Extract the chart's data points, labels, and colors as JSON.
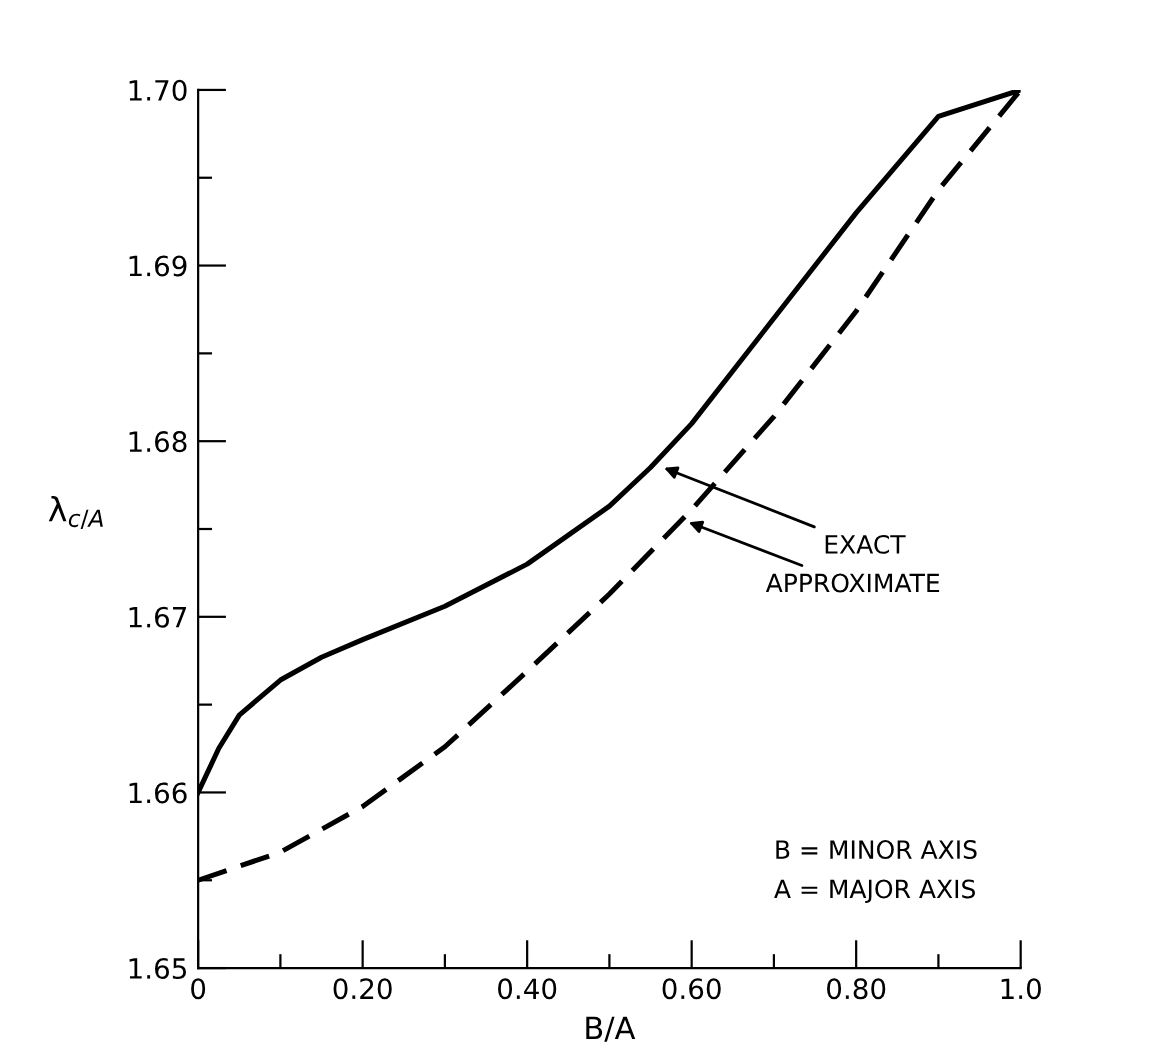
{
  "chart_data": {
    "type": "line",
    "xlabel": "B/A",
    "ylabel": "λ$_{c/A}$",
    "xlim": [
      0,
      1.0
    ],
    "ylim": [
      1.65,
      1.7
    ],
    "xticks": [
      {
        "value": 0,
        "label": "0"
      },
      {
        "value": 0.1,
        "label": null
      },
      {
        "value": 0.2,
        "label": "0.20"
      },
      {
        "value": 0.3,
        "label": null
      },
      {
        "value": 0.4,
        "label": "0.40"
      },
      {
        "value": 0.5,
        "label": null
      },
      {
        "value": 0.6,
        "label": "0.60"
      },
      {
        "value": 0.7,
        "label": null
      },
      {
        "value": 0.8,
        "label": "0.80"
      },
      {
        "value": 0.9,
        "label": null
      },
      {
        "value": 1.0,
        "label": "1.0"
      }
    ],
    "yticks": [
      {
        "value": 1.65,
        "label": "1.65"
      },
      {
        "value": 1.655,
        "label": null
      },
      {
        "value": 1.66,
        "label": "1.66"
      },
      {
        "value": 1.665,
        "label": null
      },
      {
        "value": 1.67,
        "label": "1.67"
      },
      {
        "value": 1.675,
        "label": null
      },
      {
        "value": 1.68,
        "label": "1.68"
      },
      {
        "value": 1.685,
        "label": null
      },
      {
        "value": 1.69,
        "label": "1.69"
      },
      {
        "value": 1.695,
        "label": null
      },
      {
        "value": 1.7,
        "label": "1.70"
      }
    ],
    "x": [
      0,
      0.025,
      0.05,
      0.1,
      0.15,
      0.2,
      0.3,
      0.4,
      0.5,
      0.55,
      0.6,
      0.7,
      0.8,
      0.9,
      1.0
    ],
    "series": [
      {
        "color": "#000000",
        "line_style": "solid",
        "values": [
          1.66,
          1.6625,
          1.6644,
          1.6664,
          1.6677,
          1.6687,
          1.6706,
          1.673,
          1.6763,
          1.6785,
          1.681,
          1.687,
          1.693,
          1.6985,
          1.7
        ]
      },
      {
        "color": "#000000",
        "line_style": "dashed",
        "x": [
          0,
          0.1,
          0.2,
          0.3,
          0.4,
          0.5,
          0.6,
          0.7,
          0.8,
          0.9,
          1.0
        ],
        "values": [
          1.655,
          1.6566,
          1.6592,
          1.6626,
          1.6669,
          1.6713,
          1.6761,
          1.6814,
          1.6874,
          1.6943,
          1.7
        ]
      }
    ],
    "annotations": [
      {
        "text": "EXACT",
        "x": 0.56,
        "y": 1.6786
      },
      {
        "text": "APPROXIMATE",
        "x": 0.59,
        "y": 1.6755
      },
      "B = MINOR AXIS\nA = MAJOR AXIS"
    ],
    "grid": false,
    "legend": false,
    "marker": "none"
  }
}
